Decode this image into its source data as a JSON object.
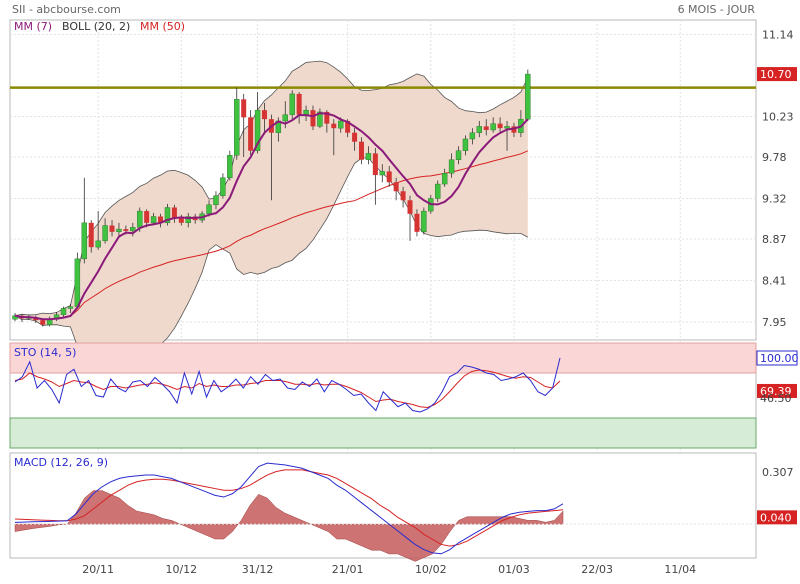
{
  "header": {
    "left_title": "SII - abcbourse.com",
    "right_title": "6 MOIS - JOUR"
  },
  "colors": {
    "border": "#b8b8b8",
    "grid": "#e2e2e2",
    "candle_up": "#3fc23f",
    "candle_down": "#d63333",
    "mm7": "#8b1a7a",
    "mm50": "#d62222",
    "boll_fill": "#efd9cc",
    "boll_line": "#555555",
    "resistance": "#8a8a00",
    "sto_k": "#2b2bd0",
    "sto_d": "#d62222",
    "sto_overbought_fill": "#fbd6d6",
    "sto_oversold_fill": "#d6ecd6",
    "macd_line": "#2b2bd0",
    "signal_line": "#d62222",
    "hist_fill": "#c45b5b",
    "price_tag_bg": "#d62222"
  },
  "chart_data": [
    {
      "type": "candlestick",
      "legend": [
        "MM (7)",
        "BOLL (20, 2)",
        "MM (50)"
      ],
      "y_ticks": [
        "11.14",
        "10.70",
        "10.23",
        "9.78",
        "9.32",
        "8.87",
        "8.41",
        "7.95"
      ],
      "ylim": [
        7.75,
        11.3
      ],
      "x_ticks": [
        "20/11",
        "10/12",
        "31/12",
        "21/01",
        "10/02",
        "01/03",
        "22/03",
        "11/04"
      ],
      "last_price_label": "10.70",
      "resistance_level": 10.55,
      "candles": [
        [
          7.98,
          8.02,
          8.05,
          7.96
        ],
        [
          8.02,
          7.99,
          8.04,
          7.95
        ],
        [
          7.99,
          8.0,
          8.03,
          7.97
        ],
        [
          8.0,
          7.97,
          8.02,
          7.94
        ],
        [
          7.97,
          7.92,
          7.99,
          7.9
        ],
        [
          7.92,
          7.98,
          8.01,
          7.9
        ],
        [
          7.98,
          8.03,
          8.06,
          7.96
        ],
        [
          8.03,
          8.1,
          8.12,
          8.0
        ],
        [
          8.1,
          8.12,
          8.15,
          8.05
        ],
        [
          8.12,
          8.65,
          8.72,
          8.1
        ],
        [
          8.65,
          9.05,
          9.55,
          8.6
        ],
        [
          9.05,
          8.78,
          9.08,
          8.72
        ],
        [
          8.78,
          8.85,
          9.18,
          8.75
        ],
        [
          8.85,
          9.02,
          9.1,
          8.82
        ],
        [
          9.02,
          8.95,
          9.08,
          8.9
        ],
        [
          8.95,
          8.98,
          9.05,
          8.9
        ],
        [
          8.98,
          8.96,
          9.02,
          8.92
        ],
        [
          8.96,
          9.0,
          9.05,
          8.9
        ],
        [
          9.0,
          9.18,
          9.22,
          8.95
        ],
        [
          9.18,
          9.05,
          9.2,
          9.0
        ],
        [
          9.05,
          9.12,
          9.16,
          9.02
        ],
        [
          9.12,
          9.05,
          9.15,
          9.0
        ],
        [
          9.05,
          9.22,
          9.26,
          9.02
        ],
        [
          9.22,
          9.1,
          9.25,
          9.05
        ],
        [
          9.1,
          9.05,
          9.14,
          9.02
        ],
        [
          9.05,
          9.12,
          9.16,
          9.0
        ],
        [
          9.12,
          9.08,
          9.15,
          9.04
        ],
        [
          9.08,
          9.15,
          9.18,
          9.05
        ],
        [
          9.15,
          9.25,
          9.3,
          9.12
        ],
        [
          9.25,
          9.35,
          9.4,
          9.2
        ],
        [
          9.35,
          9.55,
          9.6,
          9.32
        ],
        [
          9.55,
          9.8,
          9.85,
          9.52
        ],
        [
          9.8,
          10.42,
          10.55,
          9.75
        ],
        [
          10.42,
          10.22,
          10.48,
          9.78
        ],
        [
          10.22,
          9.85,
          10.3,
          9.8
        ],
        [
          9.85,
          10.3,
          10.5,
          9.82
        ],
        [
          10.3,
          10.2,
          10.38,
          10.05
        ],
        [
          10.2,
          10.05,
          10.25,
          9.3
        ],
        [
          10.05,
          10.18,
          10.22,
          9.95
        ],
        [
          10.18,
          10.25,
          10.4,
          10.1
        ],
        [
          10.25,
          10.48,
          10.52,
          10.2
        ],
        [
          10.48,
          10.25,
          10.5,
          10.15
        ],
        [
          10.25,
          10.3,
          10.35,
          10.18
        ],
        [
          10.3,
          10.12,
          10.35,
          10.08
        ],
        [
          10.12,
          10.28,
          10.32,
          10.1
        ],
        [
          10.28,
          10.15,
          10.3,
          10.05
        ],
        [
          10.15,
          10.1,
          10.2,
          9.8
        ],
        [
          10.1,
          10.18,
          10.22,
          10.05
        ],
        [
          10.18,
          10.05,
          10.2,
          10.0
        ],
        [
          10.05,
          9.95,
          10.1,
          9.85
        ],
        [
          9.95,
          9.75,
          10.0,
          9.7
        ],
        [
          9.75,
          9.82,
          9.9,
          9.7
        ],
        [
          9.82,
          9.58,
          9.88,
          9.25
        ],
        [
          9.58,
          9.62,
          9.7,
          9.5
        ],
        [
          9.62,
          9.5,
          9.68,
          9.45
        ],
        [
          9.5,
          9.4,
          9.55,
          9.3
        ],
        [
          9.4,
          9.3,
          9.45,
          9.22
        ],
        [
          9.3,
          9.15,
          9.35,
          8.85
        ],
        [
          9.15,
          8.95,
          9.2,
          8.9
        ],
        [
          8.95,
          9.18,
          9.22,
          8.92
        ],
        [
          9.18,
          9.32,
          9.36,
          9.15
        ],
        [
          9.32,
          9.48,
          9.52,
          9.28
        ],
        [
          9.48,
          9.6,
          9.65,
          9.45
        ],
        [
          9.6,
          9.75,
          9.82,
          9.55
        ],
        [
          9.75,
          9.85,
          9.9,
          9.7
        ],
        [
          9.85,
          9.98,
          10.02,
          9.8
        ],
        [
          9.98,
          10.05,
          10.1,
          9.92
        ],
        [
          10.05,
          10.12,
          10.18,
          10.0
        ],
        [
          10.12,
          10.08,
          10.2,
          10.02
        ],
        [
          10.08,
          10.15,
          10.22,
          10.05
        ],
        [
          10.15,
          10.1,
          10.22,
          10.05
        ],
        [
          10.1,
          10.12,
          10.18,
          9.85
        ],
        [
          10.12,
          10.05,
          10.16,
          10.0
        ],
        [
          10.05,
          10.2,
          10.3,
          10.0
        ],
        [
          10.2,
          10.7,
          10.75,
          10.18
        ]
      ]
    },
    {
      "type": "line",
      "title": "STO (14, 5)",
      "y_ticks": [
        "100.00",
        "69.39",
        "46.50"
      ],
      "ylim": [
        -20,
        120
      ],
      "bands": {
        "overbought": 80,
        "oversold": 20
      },
      "last_k_label": "100.00",
      "last_d_label": "69.39",
      "series": [
        {
          "name": "%K",
          "values": [
            68,
            75,
            95,
            60,
            70,
            58,
            40,
            78,
            85,
            62,
            70,
            50,
            48,
            72,
            60,
            55,
            68,
            70,
            62,
            74,
            65,
            55,
            40,
            80,
            52,
            82,
            48,
            70,
            55,
            62,
            72,
            60,
            75,
            65,
            78,
            70,
            72,
            60,
            58,
            68,
            62,
            72,
            55,
            70,
            65,
            58,
            50,
            52,
            40,
            30,
            55,
            45,
            35,
            40,
            30,
            28,
            32,
            40,
            55,
            75,
            80,
            90,
            88,
            85,
            80,
            78,
            70,
            72,
            75,
            80,
            70,
            55,
            50,
            60,
            100
          ]
        },
        {
          "name": "%D",
          "values": [
            70,
            72,
            80,
            75,
            72,
            68,
            62,
            66,
            70,
            68,
            67,
            62,
            58,
            62,
            62,
            60,
            62,
            64,
            65,
            67,
            65,
            62,
            58,
            62,
            60,
            66,
            62,
            64,
            62,
            62,
            64,
            64,
            66,
            67,
            70,
            70,
            70,
            68,
            65,
            65,
            64,
            66,
            64,
            65,
            65,
            62,
            58,
            54,
            48,
            42,
            44,
            45,
            42,
            40,
            38,
            35,
            34,
            38,
            45,
            55,
            66,
            76,
            82,
            84,
            83,
            81,
            78,
            75,
            73,
            75,
            74,
            68,
            62,
            60,
            69.39
          ]
        }
      ]
    },
    {
      "type": "line",
      "title": "MACD (12, 26, 9)",
      "y_ticks": [
        "0.307",
        "0.040"
      ],
      "ylim": [
        -0.2,
        0.42
      ],
      "last_label": "0.040",
      "series": [
        {
          "name": "MACD",
          "values": [
            0.01,
            0.012,
            0.014,
            0.015,
            0.016,
            0.018,
            0.02,
            0.06,
            0.12,
            0.18,
            0.22,
            0.25,
            0.27,
            0.28,
            0.285,
            0.29,
            0.29,
            0.28,
            0.27,
            0.25,
            0.23,
            0.21,
            0.19,
            0.17,
            0.16,
            0.18,
            0.22,
            0.28,
            0.34,
            0.36,
            0.355,
            0.35,
            0.34,
            0.33,
            0.31,
            0.29,
            0.27,
            0.23,
            0.2,
            0.16,
            0.12,
            0.08,
            0.04,
            0,
            -0.04,
            -0.08,
            -0.12,
            -0.15,
            -0.17,
            -0.175,
            -0.15,
            -0.11,
            -0.08,
            -0.05,
            -0.02,
            0.01,
            0.04,
            0.06,
            0.07,
            0.075,
            0.08,
            0.08,
            0.09,
            0.12
          ]
        },
        {
          "name": "Signal",
          "values": [
            0.03,
            0.028,
            0.026,
            0.024,
            0.022,
            0.02,
            0.02,
            0.03,
            0.05,
            0.09,
            0.13,
            0.17,
            0.2,
            0.23,
            0.25,
            0.26,
            0.265,
            0.265,
            0.26,
            0.25,
            0.24,
            0.23,
            0.22,
            0.21,
            0.2,
            0.2,
            0.21,
            0.23,
            0.26,
            0.29,
            0.31,
            0.32,
            0.32,
            0.32,
            0.31,
            0.3,
            0.29,
            0.27,
            0.24,
            0.21,
            0.18,
            0.15,
            0.11,
            0.08,
            0.04,
            0.01,
            -0.02,
            -0.06,
            -0.09,
            -0.12,
            -0.13,
            -0.12,
            -0.1,
            -0.07,
            -0.04,
            -0.01,
            0.02,
            0.04,
            0.055,
            0.065,
            0.07,
            0.075,
            0.08,
            0.085
          ]
        }
      ]
    }
  ]
}
